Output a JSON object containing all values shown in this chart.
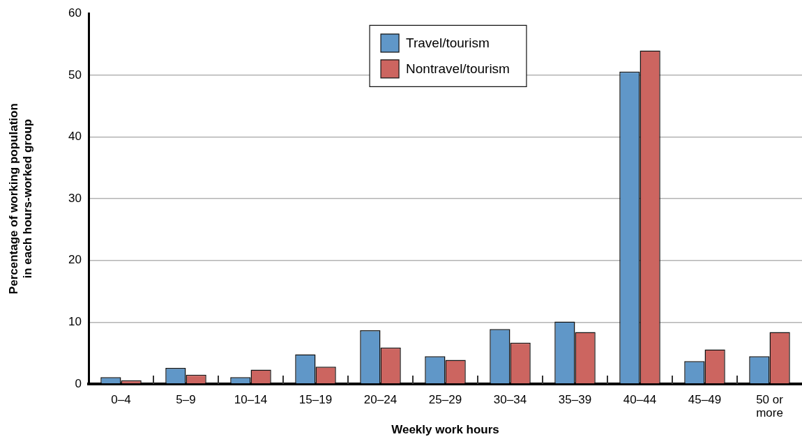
{
  "chart_data": {
    "type": "bar",
    "xlabel": "Weekly work hours",
    "ylabel": "Percentage of working population in each hours-worked group",
    "categories": [
      "0–4",
      "5–9",
      "10–14",
      "15–19",
      "20–24",
      "25–29",
      "30–34",
      "35–39",
      "40–44",
      "45–49",
      "50 or more"
    ],
    "series": [
      {
        "name": "Travel/tourism",
        "color": "#6097c8",
        "values": [
          1.1,
          2.6,
          1.1,
          4.8,
          8.7,
          4.5,
          8.9,
          10.1,
          50.6,
          3.7,
          4.5
        ]
      },
      {
        "name": "Nontravel/tourism",
        "color": "#cc6560",
        "values": [
          0.6,
          1.5,
          2.3,
          2.8,
          5.9,
          3.9,
          6.7,
          8.4,
          54.0,
          5.6,
          8.4
        ]
      }
    ],
    "ylim": [
      0,
      60
    ],
    "yticks": [
      0,
      10,
      20,
      30,
      40,
      50,
      60
    ],
    "grid": "y",
    "legend": "top"
  }
}
